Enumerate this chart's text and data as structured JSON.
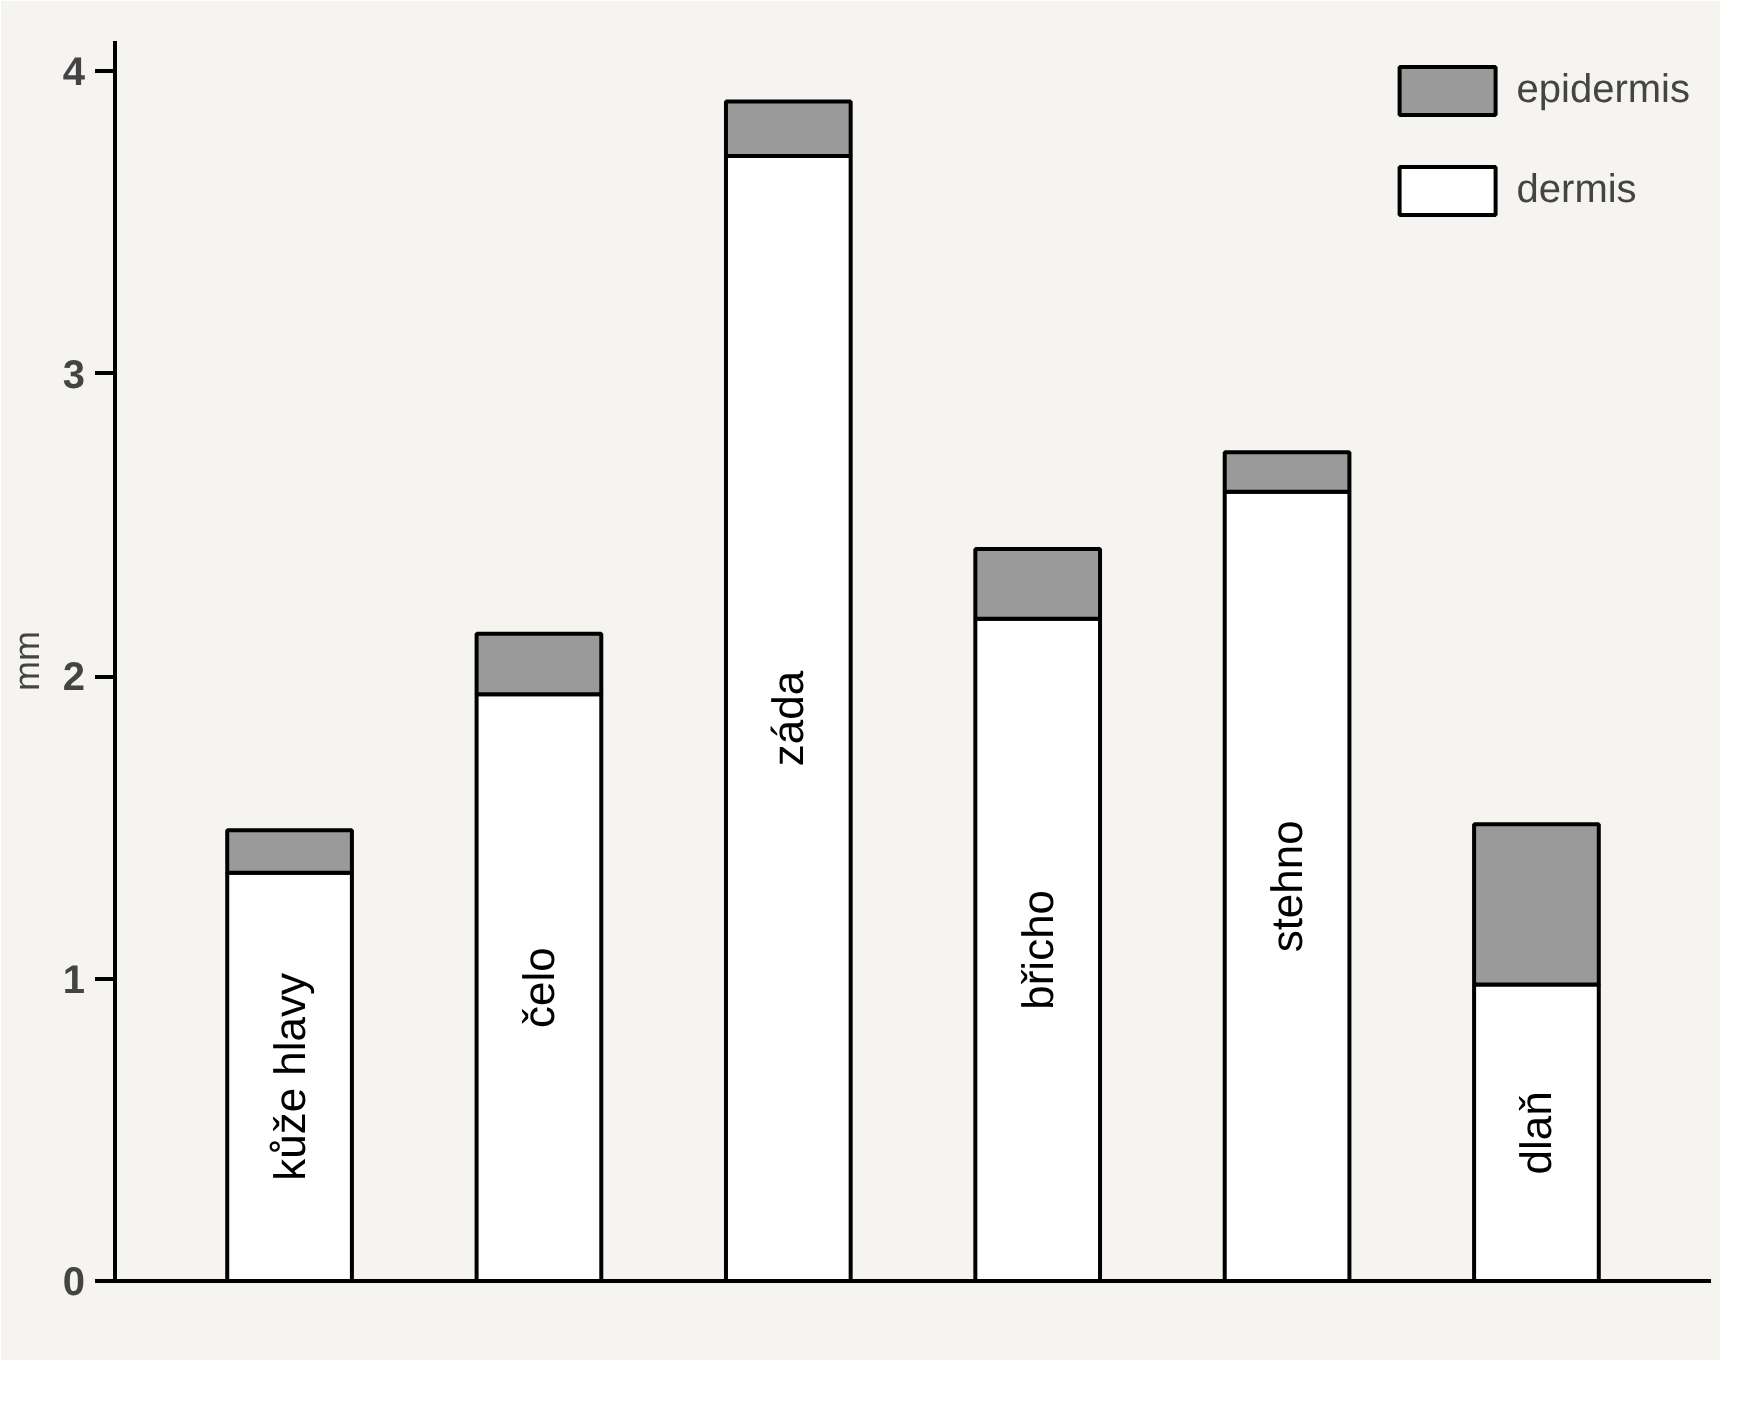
{
  "chart_data": {
    "type": "bar",
    "stacked": true,
    "ylabel": "mm",
    "categories": [
      "kůže hlavy",
      "čelo",
      "záda",
      "břicho",
      "stehno",
      "dlaň"
    ],
    "series": [
      {
        "name": "dermis",
        "color": "#ffffff",
        "values": [
          1.35,
          1.94,
          3.72,
          2.19,
          2.61,
          0.98
        ]
      },
      {
        "name": "epidermis",
        "color": "#9a9a9a",
        "values": [
          0.14,
          0.2,
          0.18,
          0.23,
          0.13,
          0.53
        ]
      }
    ],
    "ylim": [
      0,
      4.1
    ],
    "yticks": [
      0,
      1,
      2,
      3,
      4
    ],
    "grid": false,
    "legend": "top right"
  }
}
